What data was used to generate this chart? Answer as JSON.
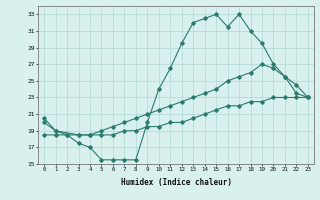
{
  "line1_x": [
    0,
    1,
    2,
    3,
    4,
    5,
    6,
    7,
    8,
    9,
    10,
    11,
    12,
    13,
    14,
    15,
    16,
    17,
    18,
    19,
    20,
    21,
    22,
    23
  ],
  "line1_y": [
    20.5,
    19.0,
    18.5,
    17.5,
    17.0,
    15.5,
    15.5,
    15.5,
    15.5,
    20.0,
    24.0,
    26.5,
    29.5,
    32.0,
    32.5,
    33.0,
    31.5,
    33.0,
    31.0,
    29.5,
    27.0,
    25.5,
    24.5,
    23.0
  ],
  "line2_x": [
    0,
    1,
    3,
    4,
    5,
    6,
    7,
    8,
    9,
    10,
    11,
    12,
    13,
    14,
    15,
    16,
    17,
    18,
    19,
    20,
    21,
    22,
    23
  ],
  "line2_y": [
    20.0,
    19.0,
    18.5,
    18.5,
    19.0,
    19.5,
    20.0,
    20.5,
    21.0,
    21.5,
    22.0,
    22.5,
    23.0,
    23.5,
    24.0,
    25.0,
    25.5,
    26.0,
    27.0,
    26.5,
    25.5,
    23.5,
    23.0
  ],
  "line3_x": [
    0,
    1,
    2,
    3,
    4,
    5,
    6,
    7,
    8,
    9,
    10,
    11,
    12,
    13,
    14,
    15,
    16,
    17,
    18,
    19,
    20,
    21,
    22,
    23
  ],
  "line3_y": [
    18.5,
    18.5,
    18.5,
    18.5,
    18.5,
    18.5,
    18.5,
    19.0,
    19.0,
    19.5,
    19.5,
    20.0,
    20.0,
    20.5,
    21.0,
    21.5,
    22.0,
    22.0,
    22.5,
    22.5,
    23.0,
    23.0,
    23.0,
    23.0
  ],
  "color": "#2a7a6e",
  "bg_color": "#d8f0ee",
  "grid_color": "#b0d8d4",
  "xlabel": "Humidex (Indice chaleur)",
  "ylim": [
    15,
    34
  ],
  "xlim": [
    -0.5,
    23.5
  ],
  "yticks": [
    15,
    17,
    19,
    21,
    23,
    25,
    27,
    29,
    31,
    33
  ],
  "xticks": [
    0,
    1,
    2,
    3,
    4,
    5,
    6,
    7,
    8,
    9,
    10,
    11,
    12,
    13,
    14,
    15,
    16,
    17,
    18,
    19,
    20,
    21,
    22,
    23
  ]
}
